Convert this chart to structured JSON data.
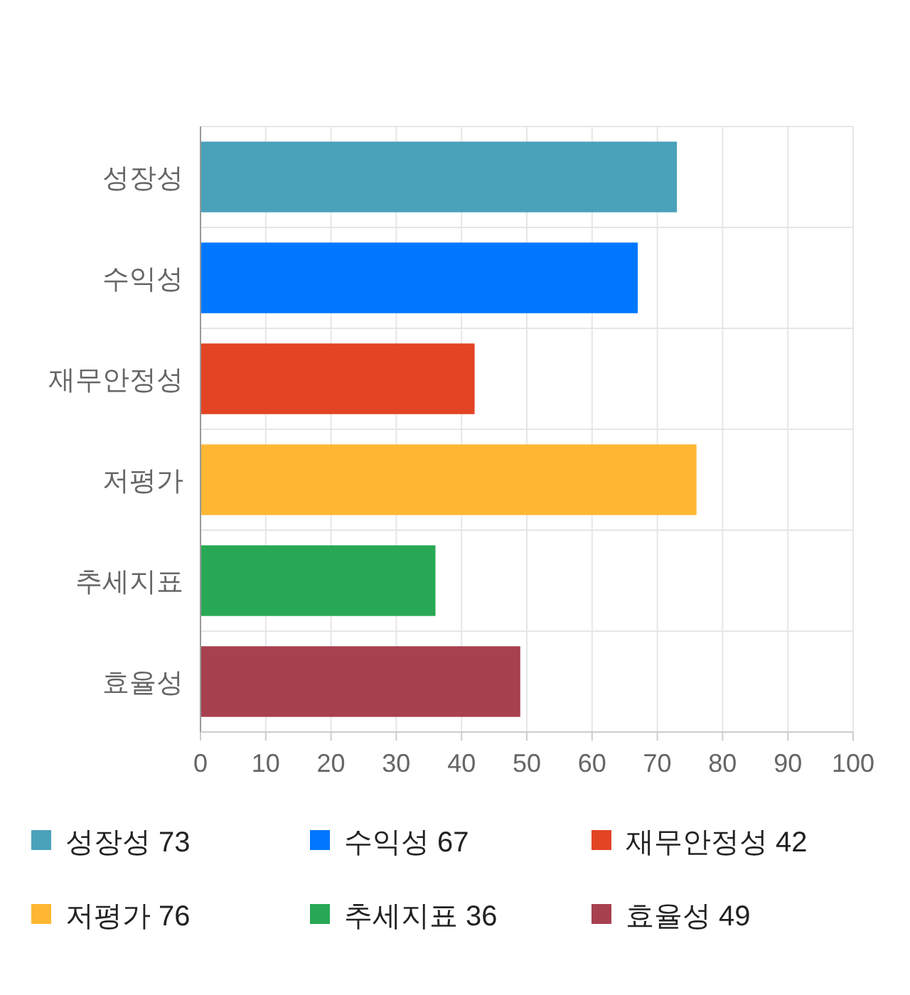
{
  "chart_data": {
    "type": "bar",
    "orientation": "horizontal",
    "categories": [
      "성장성",
      "수익성",
      "재무안정성",
      "저평가",
      "추세지표",
      "효율성"
    ],
    "series": [
      {
        "name": "성장성 73",
        "color": "#4aa1ba",
        "values": [
          73,
          null,
          null,
          null,
          null,
          null
        ]
      },
      {
        "name": "수익성 67",
        "color": "#0077ff",
        "values": [
          null,
          67,
          null,
          null,
          null,
          null
        ]
      },
      {
        "name": "재무안정성 42",
        "color": "#e24424",
        "values": [
          null,
          null,
          42,
          null,
          null,
          null
        ]
      },
      {
        "name": "저평가 76",
        "color": "#ffb733",
        "values": [
          null,
          null,
          null,
          76,
          null,
          null
        ]
      },
      {
        "name": "추세지표 36",
        "color": "#28a855",
        "values": [
          null,
          null,
          null,
          null,
          36,
          null
        ]
      },
      {
        "name": "효율성 49",
        "color": "#a7404f",
        "values": [
          null,
          null,
          null,
          null,
          null,
          49
        ]
      }
    ],
    "xlim": [
      0,
      100
    ],
    "xticks": [
      0,
      10,
      20,
      30,
      40,
      50,
      60,
      70,
      80,
      90,
      100
    ],
    "grid": true,
    "legend": "bottom"
  }
}
